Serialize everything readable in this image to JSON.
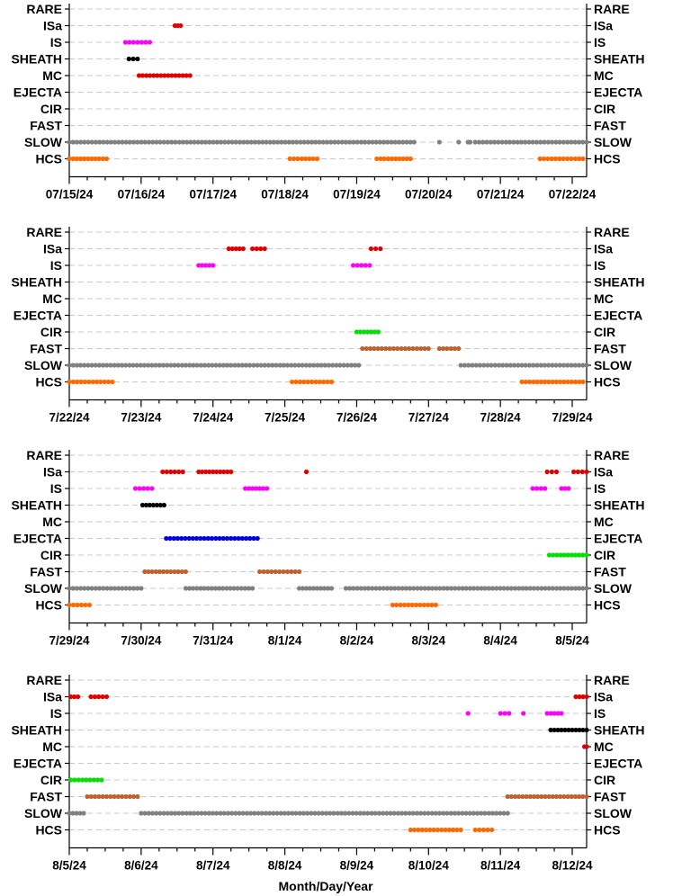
{
  "chart_data": {
    "type": "scatter",
    "xlabel": "Month/Day/Year",
    "categories": [
      "HCS",
      "SLOW",
      "FAST",
      "CIR",
      "EJECTA",
      "MC",
      "SHEATH",
      "IS",
      "ISa",
      "RARE"
    ],
    "series_colors": {
      "HCS": "#ff6a00",
      "SLOW": "#808080",
      "FAST": "#c0622f",
      "CIR": "#00e000",
      "EJECTA": "#0000e0",
      "MC": "#e00000",
      "SHEATH": "#000000",
      "IS": "#ff00ff",
      "ISa": "#e00000",
      "RARE": "#000000"
    },
    "panels": [
      {
        "x_ticks": [
          "07/15/24",
          "07/16/24",
          "07/17/24",
          "07/18/24",
          "07/19/24",
          "07/20/24",
          "07/21/24",
          "07/22/24"
        ],
        "xlim": [
          0,
          7.2
        ],
        "segments": {
          "ISa": [
            [
              1.47,
              1.55
            ]
          ],
          "IS": [
            [
              0.78,
              1.12
            ]
          ],
          "SHEATH": [
            [
              0.83,
              0.95
            ]
          ],
          "MC": [
            [
              0.97,
              1.68
            ]
          ],
          "SLOW": [
            [
              0.0,
              4.8
            ],
            [
              5.15,
              5.15
            ],
            [
              5.42,
              5.42
            ],
            [
              5.55,
              5.58
            ],
            [
              5.65,
              7.2
            ]
          ],
          "HCS": [
            [
              0.0,
              0.52
            ],
            [
              3.07,
              3.45
            ],
            [
              4.28,
              4.75
            ],
            [
              6.55,
              7.15
            ]
          ]
        }
      },
      {
        "x_ticks": [
          "7/22/24",
          "7/23/24",
          "7/24/24",
          "7/25/24",
          "7/26/24",
          "7/27/24",
          "7/28/24",
          "7/29/24"
        ],
        "xlim": [
          0,
          7.2
        ],
        "segments": {
          "ISa": [
            [
              2.22,
              2.42
            ],
            [
              2.55,
              2.72
            ],
            [
              4.2,
              4.33
            ]
          ],
          "IS": [
            [
              1.8,
              2.0
            ],
            [
              3.95,
              4.18
            ]
          ],
          "CIR": [
            [
              4.0,
              4.3
            ]
          ],
          "FAST": [
            [
              4.08,
              5.0
            ],
            [
              5.15,
              5.42
            ]
          ],
          "SLOW": [
            [
              0.0,
              4.03
            ],
            [
              5.45,
              7.2
            ]
          ],
          "HCS": [
            [
              0.0,
              0.6
            ],
            [
              3.1,
              3.65
            ],
            [
              6.3,
              7.15
            ]
          ]
        }
      },
      {
        "x_ticks": [
          "7/29/24",
          "7/30/24",
          "7/31/24",
          "8/1/24",
          "8/2/24",
          "8/3/24",
          "8/4/24",
          "8/5/24"
        ],
        "xlim": [
          0,
          7.2
        ],
        "segments": {
          "ISa": [
            [
              1.3,
              1.58
            ],
            [
              1.8,
              2.25
            ],
            [
              3.3,
              3.3
            ],
            [
              6.65,
              6.78
            ],
            [
              7.02,
              7.2
            ]
          ],
          "IS": [
            [
              0.92,
              1.15
            ],
            [
              2.45,
              2.75
            ],
            [
              6.45,
              6.62
            ],
            [
              6.85,
              6.95
            ]
          ],
          "SHEATH": [
            [
              1.02,
              1.32
            ]
          ],
          "EJECTA": [
            [
              1.35,
              2.62
            ]
          ],
          "CIR": [
            [
              6.68,
              7.2
            ]
          ],
          "FAST": [
            [
              1.05,
              1.62
            ],
            [
              2.65,
              3.2
            ]
          ],
          "SLOW": [
            [
              0.0,
              1.0
            ],
            [
              1.62,
              2.55
            ],
            [
              3.2,
              3.65
            ],
            [
              3.85,
              7.2
            ]
          ],
          "HCS": [
            [
              0.0,
              0.28
            ],
            [
              4.5,
              5.1
            ]
          ]
        }
      },
      {
        "x_ticks": [
          "8/5/24",
          "8/6/24",
          "8/7/24",
          "8/8/24",
          "8/9/24",
          "8/10/24",
          "8/11/24",
          "8/12/24"
        ],
        "xlim": [
          0,
          7.2
        ],
        "segments": {
          "ISa": [
            [
              0.02,
              0.12
            ],
            [
              0.3,
              0.52
            ],
            [
              7.05,
              7.2
            ]
          ],
          "IS": [
            [
              5.55,
              5.55
            ],
            [
              6.0,
              6.12
            ],
            [
              6.32,
              6.32
            ],
            [
              6.65,
              6.85
            ]
          ],
          "SHEATH": [
            [
              6.7,
              7.2
            ]
          ],
          "MC": [
            [
              7.17,
              7.2
            ]
          ],
          "CIR": [
            [
              0.02,
              0.45
            ]
          ],
          "FAST": [
            [
              0.25,
              0.95
            ],
            [
              6.1,
              7.2
            ]
          ],
          "SLOW": [
            [
              0.0,
              0.2
            ],
            [
              1.0,
              6.1
            ]
          ],
          "HCS": [
            [
              4.75,
              5.45
            ],
            [
              5.65,
              5.88
            ]
          ]
        }
      }
    ]
  }
}
